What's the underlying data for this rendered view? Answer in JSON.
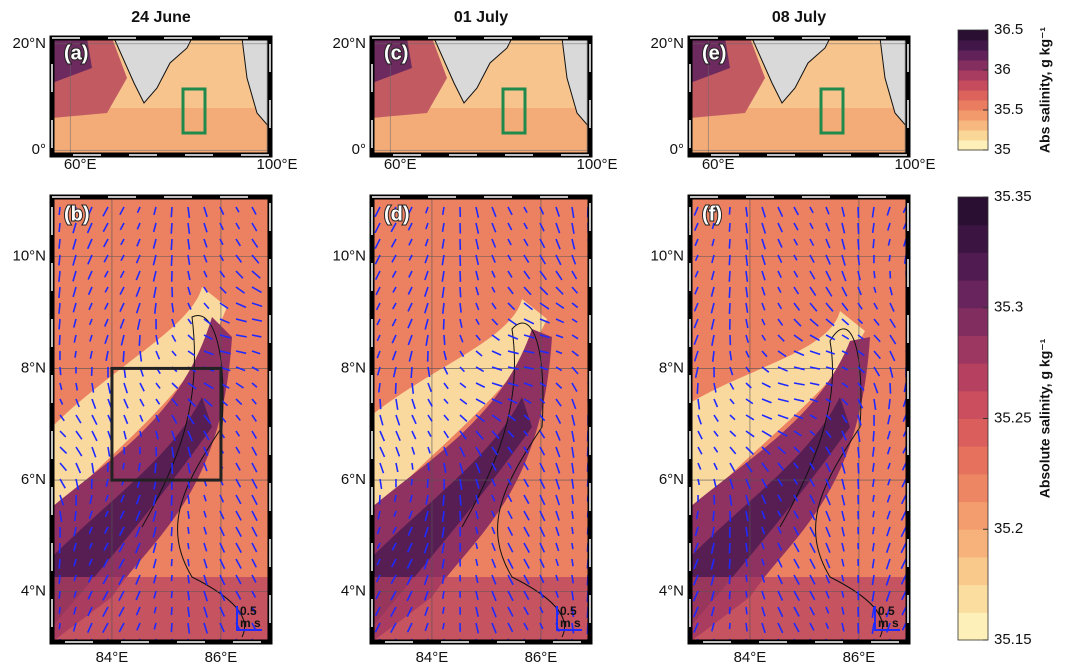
{
  "columns": [
    {
      "title": "24 June",
      "top_panel": "(a)",
      "bottom_panel": "(b)"
    },
    {
      "title": "01 July",
      "top_panel": "(c)",
      "bottom_panel": "(d)"
    },
    {
      "title": "08 July",
      "top_panel": "(e)",
      "bottom_panel": "(f)"
    }
  ],
  "top_map": {
    "xlim": [
      56.3,
      100.6
    ],
    "ylim": [
      -0.9,
      21.1
    ],
    "xticks": [
      {
        "value": 60,
        "label": "60°E"
      },
      {
        "value": 100,
        "label": "100°E"
      }
    ],
    "yticks": [
      {
        "value": 0,
        "label": "0°"
      },
      {
        "value": 20,
        "label": "20°N"
      }
    ]
  },
  "bottom_map": {
    "xlim": [
      82.9,
      86.9
    ],
    "ylim": [
      3.1,
      11.07
    ],
    "xticks": [
      {
        "value": 84,
        "label": "84°E"
      },
      {
        "value": 86,
        "label": "86°E"
      }
    ],
    "yticks": [
      {
        "value": 4,
        "label": "4°N"
      },
      {
        "value": 6,
        "label": "6°N"
      },
      {
        "value": 8,
        "label": "8°N"
      },
      {
        "value": 10,
        "label": "10°N"
      }
    ]
  },
  "scale_arrow": {
    "value": 0.5,
    "unit": "m s"
  },
  "colorbars": [
    {
      "label": "Abs salinity, g kg⁻¹",
      "lim": [
        35,
        36.5
      ],
      "ticks": [
        35,
        35.5,
        36,
        36.5
      ]
    },
    {
      "label": "Absolute salinity, g kg⁻¹",
      "lim": [
        35.15,
        35.35
      ],
      "ticks": [
        35.15,
        35.2,
        35.25,
        35.3,
        35.35
      ]
    }
  ]
}
